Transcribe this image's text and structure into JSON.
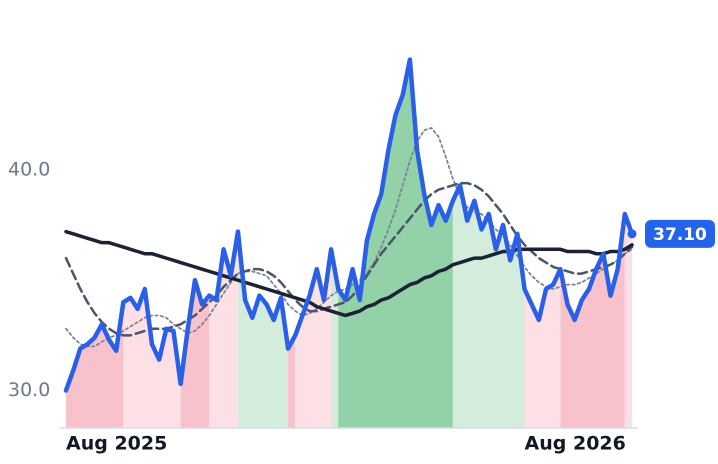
{
  "chart_data": {
    "type": "line",
    "categories": [
      "Aug 2025",
      null,
      null,
      null,
      null,
      null,
      null,
      null,
      null,
      null,
      null,
      null,
      null,
      null,
      null,
      null,
      null,
      null,
      null,
      null,
      null,
      null,
      null,
      null,
      null,
      null,
      null,
      null,
      null,
      null,
      null,
      null,
      null,
      null,
      null,
      null,
      null,
      null,
      null,
      null,
      null,
      null,
      null,
      null,
      null,
      null,
      null,
      null,
      null,
      null,
      null,
      null,
      null,
      null,
      null,
      null,
      null,
      null,
      null,
      null,
      null,
      null,
      null,
      null,
      "Aug 2026",
      null,
      null,
      null,
      null,
      null,
      null,
      null,
      null,
      null,
      null,
      null,
      null,
      null,
      null,
      null
    ],
    "series": [
      {
        "color": "#2a5fe8",
        "style": "solid",
        "width": 4.5,
        "values": [
          30.0,
          30.9,
          31.9,
          32.1,
          32.4,
          33.0,
          32.3,
          31.8,
          34.0,
          34.2,
          33.7,
          34.6,
          32.1,
          31.4,
          32.8,
          32.7,
          30.3,
          32.8,
          35.0,
          33.9,
          34.3,
          34.1,
          36.4,
          35.2,
          37.2,
          34.1,
          33.3,
          34.3,
          33.9,
          33.2,
          34.2,
          31.9,
          32.5,
          33.4,
          34.3,
          35.5,
          34.1,
          36.4,
          34.6,
          34.1,
          35.5,
          34.1,
          36.8,
          38.0,
          38.9,
          40.9,
          42.5,
          43.4,
          45.0,
          40.9,
          38.9,
          37.5,
          38.4,
          37.7,
          38.6,
          39.3,
          37.7,
          38.6,
          37.3,
          38.0,
          36.4,
          37.5,
          35.9,
          37.1,
          34.6,
          33.9,
          33.2,
          34.6,
          34.8,
          35.5,
          33.9,
          33.2,
          34.1,
          34.6,
          35.5,
          36.2,
          34.3,
          35.5,
          38.0,
          37.1
        ],
        "value_labels": [
          null,
          null,
          null,
          null,
          null,
          null,
          null,
          null,
          null,
          null,
          null,
          null,
          null,
          null,
          null,
          null,
          null,
          null,
          null,
          null,
          null,
          null,
          null,
          null,
          null,
          null,
          null,
          null,
          null,
          null,
          null,
          null,
          null,
          null,
          null,
          null,
          null,
          null,
          null,
          null,
          null,
          null,
          null,
          null,
          null,
          null,
          null,
          null,
          null,
          null,
          null,
          null,
          null,
          null,
          null,
          null,
          null,
          null,
          null,
          null,
          null,
          null,
          null,
          null,
          null,
          null,
          null,
          null,
          null,
          null,
          null,
          null,
          null,
          null,
          null,
          null,
          null,
          null,
          null,
          "37.10"
        ]
      },
      {
        "color": "#1b2233",
        "style": "solid",
        "width": 3.5,
        "values": [
          37.2,
          37.1,
          37.0,
          36.9,
          36.8,
          36.7,
          36.7,
          36.6,
          36.5,
          36.4,
          36.3,
          36.2,
          36.2,
          36.1,
          36.0,
          35.9,
          35.8,
          35.7,
          35.6,
          35.5,
          35.4,
          35.3,
          35.2,
          35.1,
          35.0,
          34.9,
          34.8,
          34.7,
          34.6,
          34.5,
          34.4,
          34.3,
          34.2,
          34.1,
          34.0,
          33.8,
          33.7,
          33.6,
          33.5,
          33.4,
          33.5,
          33.6,
          33.8,
          33.9,
          34.1,
          34.2,
          34.4,
          34.6,
          34.8,
          34.9,
          35.1,
          35.2,
          35.4,
          35.5,
          35.7,
          35.8,
          35.9,
          36.0,
          36.0,
          36.1,
          36.2,
          36.3,
          36.3,
          36.4,
          36.4,
          36.4,
          36.4,
          36.4,
          36.4,
          36.4,
          36.3,
          36.3,
          36.3,
          36.3,
          36.2,
          36.2,
          36.3,
          36.3,
          36.4,
          36.6
        ]
      },
      {
        "color": "#4a5567",
        "style": "dashed",
        "width": 2.5,
        "values": [
          36.0,
          35.3,
          34.6,
          34.0,
          33.5,
          33.1,
          32.8,
          32.6,
          32.5,
          32.5,
          32.6,
          32.7,
          32.8,
          32.8,
          32.8,
          32.9,
          33.0,
          33.2,
          33.4,
          33.7,
          34.0,
          34.3,
          34.7,
          35.0,
          35.3,
          35.4,
          35.5,
          35.5,
          35.4,
          35.2,
          34.9,
          34.5,
          34.1,
          33.8,
          33.6,
          33.6,
          33.7,
          33.8,
          33.9,
          34.0,
          34.3,
          34.7,
          35.2,
          35.7,
          36.2,
          36.6,
          37.0,
          37.4,
          37.8,
          38.2,
          38.6,
          38.9,
          39.1,
          39.2,
          39.3,
          39.4,
          39.4,
          39.3,
          39.1,
          38.8,
          38.4,
          38.0,
          37.5,
          37.0,
          36.6,
          36.3,
          36.0,
          35.8,
          35.6,
          35.5,
          35.4,
          35.3,
          35.3,
          35.4,
          35.5,
          35.6,
          35.7,
          35.9,
          36.2,
          36.5
        ]
      },
      {
        "color": "#7b8596",
        "style": "dotted",
        "width": 1.8,
        "values": [
          32.8,
          32.4,
          32.1,
          32.0,
          32.0,
          32.2,
          32.4,
          32.5,
          32.7,
          32.9,
          33.1,
          33.3,
          33.4,
          33.4,
          33.3,
          33.0,
          32.8,
          32.6,
          32.7,
          33.0,
          33.4,
          33.9,
          34.4,
          34.9,
          35.3,
          35.4,
          35.4,
          35.3,
          35.2,
          34.8,
          34.4,
          33.9,
          33.6,
          33.4,
          33.5,
          33.7,
          34.0,
          34.3,
          34.5,
          34.6,
          34.8,
          35.0,
          35.3,
          35.8,
          36.5,
          37.3,
          38.2,
          39.3,
          40.4,
          41.3,
          41.8,
          41.9,
          41.5,
          40.6,
          39.6,
          38.8,
          38.3,
          38.1,
          38.0,
          37.7,
          37.3,
          37.0,
          36.6,
          36.1,
          35.6,
          35.2,
          34.9,
          34.7,
          34.6,
          34.7,
          34.8,
          34.8,
          34.9,
          35.1,
          35.3,
          35.5,
          35.7,
          35.9,
          36.2,
          36.4
        ]
      }
    ],
    "regions": [
      {
        "from": 0,
        "to": 8,
        "color": "#f8c2cc"
      },
      {
        "from": 8,
        "to": 16,
        "color": "#fde0e5"
      },
      {
        "from": 16,
        "to": 20,
        "color": "#f8c2cc"
      },
      {
        "from": 20,
        "to": 24,
        "color": "#fde0e5"
      },
      {
        "from": 24,
        "to": 31,
        "color": "#d3ecdb"
      },
      {
        "from": 31,
        "to": 32,
        "color": "#f8c2cc"
      },
      {
        "from": 32,
        "to": 37,
        "color": "#fde0e5"
      },
      {
        "from": 37,
        "to": 38,
        "color": "#d3ecdb"
      },
      {
        "from": 38,
        "to": 54,
        "color": "#93d1a8"
      },
      {
        "from": 54,
        "to": 64,
        "color": "#d3ecdb"
      },
      {
        "from": 64,
        "to": 69,
        "color": "#fde0e5"
      },
      {
        "from": 69,
        "to": 78,
        "color": "#f8c2cc"
      },
      {
        "from": 78,
        "to": 79,
        "color": "#fde0e5"
      }
    ],
    "ylim": [
      28.3,
      47.7
    ],
    "yticks": [
      {
        "value": 30,
        "label": "30.0"
      },
      {
        "value": 40,
        "label": "40.0"
      }
    ],
    "grid": false
  }
}
